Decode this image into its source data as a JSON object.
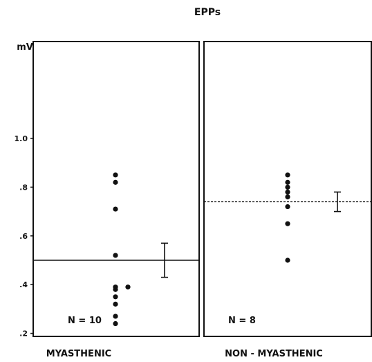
{
  "chart_data": {
    "type": "scatter",
    "title": "EPPs",
    "ylabel": "mV",
    "ylim": [
      0,
      1.15
    ],
    "yticks": [
      0.2,
      0.4,
      0.6,
      0.8,
      1.0
    ],
    "ytick_labels": [
      ".2",
      ".4",
      ".6",
      ".8",
      "1.0"
    ],
    "grid": false,
    "panels": [
      {
        "name": "MYASTHENIC",
        "n_label": "N = 10",
        "points": [
          0.85,
          0.82,
          0.71,
          0.52,
          0.39,
          0.38,
          0.35,
          0.32,
          0.27,
          0.24
        ],
        "offset_points": [
          0.39
        ],
        "mean": 0.5,
        "error_bar": [
          0.43,
          0.57
        ]
      },
      {
        "name": "NON - MYASTHENIC",
        "n_label": "N = 8",
        "points": [
          0.85,
          0.82,
          0.8,
          0.78,
          0.76,
          0.72,
          0.65,
          0.5
        ],
        "offset_points": [],
        "mean": 0.74,
        "error_bar": [
          0.7,
          0.78
        ]
      }
    ]
  }
}
